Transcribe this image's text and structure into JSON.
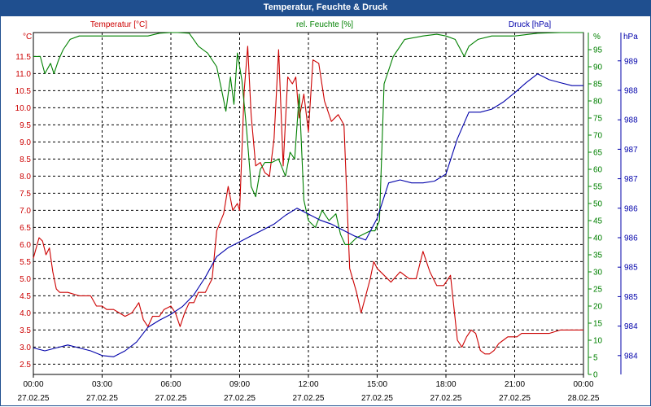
{
  "window": {
    "title": "Temperatur, Feuchte & Druck"
  },
  "chart_data": {
    "type": "line",
    "title": "Temperatur, Feuchte & Druck",
    "x_hours": [
      0,
      1.5,
      3,
      4.5,
      6,
      7.5,
      9,
      10.5,
      12,
      13.5,
      15,
      16.5,
      18,
      19.5,
      21,
      22.5,
      24
    ],
    "x_tick_labels": [
      {
        "time": "00:00",
        "date": "27.02.25"
      },
      {
        "time": "03:00",
        "date": "27.02.25"
      },
      {
        "time": "06:00",
        "date": "27.02.25"
      },
      {
        "time": "09:00",
        "date": "27.02.25"
      },
      {
        "time": "12:00",
        "date": "27.02.25"
      },
      {
        "time": "15:00",
        "date": "27.02.25"
      },
      {
        "time": "18:00",
        "date": "27.02.25"
      },
      {
        "time": "21:00",
        "date": "27.02.25"
      },
      {
        "time": "00:00",
        "date": "28.02.25"
      }
    ],
    "left_axis": {
      "label": "Temperatur [°C]",
      "unit": "°C",
      "color": "#cc0000",
      "ylim": [
        2.2,
        12.2
      ],
      "ticks": [
        "2.5",
        "3.0",
        "3.5",
        "4.0",
        "4.5",
        "5.0",
        "5.5",
        "6.0",
        "6.5",
        "7.0",
        "7.5",
        "8.0",
        "8.5",
        "9.0",
        "9.5",
        "10.0",
        "10.5",
        "11.0",
        "11.5"
      ]
    },
    "right_axis_1": {
      "label": "rel. Feuchte [%]",
      "unit": "%",
      "color": "#008000",
      "ylim": [
        0,
        100
      ],
      "ticks": [
        "0",
        "5",
        "10",
        "15",
        "20",
        "25",
        "30",
        "35",
        "40",
        "45",
        "50",
        "55",
        "60",
        "65",
        "70",
        "75",
        "80",
        "85",
        "90",
        "95"
      ]
    },
    "right_axis_2": {
      "label": "Druck [hPa]",
      "unit": "hPa",
      "color": "#0000aa",
      "ylim": [
        983.6,
        989.4
      ],
      "ticks": [
        "984",
        "984",
        "985",
        "985",
        "986",
        "986",
        "987",
        "987",
        "988",
        "988",
        "989"
      ]
    },
    "series": [
      {
        "name": "Temperatur [°C]",
        "axis": "left",
        "color": "#cc0000",
        "x": [
          0,
          0.25,
          0.4,
          0.55,
          0.7,
          0.85,
          1,
          1.15,
          1.3,
          1.5,
          2,
          2.5,
          2.75,
          3,
          3.2,
          3.5,
          4,
          4.3,
          4.6,
          4.8,
          5,
          5.2,
          5.5,
          5.7,
          6,
          6.2,
          6.4,
          6.6,
          6.8,
          7,
          7.2,
          7.5,
          7.8,
          8,
          8.3,
          8.5,
          8.7,
          8.9,
          9,
          9.2,
          9.35,
          9.5,
          9.7,
          9.9,
          10.1,
          10.3,
          10.5,
          10.7,
          10.9,
          11.1,
          11.3,
          11.45,
          11.6,
          11.8,
          12,
          12.2,
          12.45,
          12.7,
          13,
          13.3,
          13.55,
          13.8,
          14.1,
          14.3,
          14.5,
          14.7,
          14.85,
          15,
          15.3,
          15.6,
          16,
          16.4,
          16.7,
          17,
          17.3,
          17.6,
          17.9,
          18.2,
          18.5,
          18.7,
          18.9,
          19.1,
          19.3,
          19.5,
          19.7,
          19.9,
          20.1,
          20.3,
          20.5,
          20.7,
          20.9,
          21.1,
          21.3,
          21.6,
          22,
          22.5,
          23,
          23.5,
          24
        ],
        "values": [
          5.6,
          6.2,
          6.1,
          5.7,
          5.9,
          5.2,
          4.7,
          4.6,
          4.6,
          4.6,
          4.5,
          4.5,
          4.2,
          4.2,
          4.1,
          4.1,
          3.9,
          4.0,
          4.3,
          3.8,
          3.6,
          3.9,
          3.9,
          4.1,
          4.2,
          4.0,
          3.6,
          4.0,
          4.3,
          4.3,
          4.6,
          4.6,
          5.0,
          6.4,
          6.9,
          7.7,
          7.0,
          7.2,
          7.0,
          10.5,
          11.8,
          9.8,
          8.3,
          8.4,
          8.1,
          8.0,
          9.1,
          11.7,
          8.3,
          10.9,
          10.7,
          10.9,
          9.7,
          10.4,
          9.3,
          11.4,
          11.3,
          10.2,
          9.6,
          9.8,
          9.5,
          5.3,
          4.6,
          4.0,
          4.5,
          5.0,
          5.5,
          5.3,
          5.1,
          4.9,
          5.2,
          5.0,
          5.0,
          5.8,
          5.2,
          4.8,
          4.8,
          5.1,
          3.2,
          3.0,
          3.3,
          3.5,
          3.4,
          2.9,
          2.8,
          2.8,
          2.9,
          3.1,
          3.2,
          3.3,
          3.3,
          3.3,
          3.4,
          3.4,
          3.4,
          3.4,
          3.5,
          3.5,
          3.5
        ]
      },
      {
        "name": "rel. Feuchte [%]",
        "axis": "right_1",
        "color": "#008000",
        "x": [
          0,
          0.3,
          0.5,
          0.75,
          0.9,
          1.1,
          1.3,
          1.6,
          2,
          3,
          4,
          5,
          5.5,
          6,
          6.3,
          6.8,
          7.2,
          7.6,
          8,
          8.25,
          8.4,
          8.6,
          8.75,
          8.9,
          9.1,
          9.3,
          9.5,
          9.7,
          9.9,
          10.1,
          10.4,
          10.7,
          11,
          11.2,
          11.4,
          11.6,
          11.8,
          12,
          12.3,
          12.6,
          12.9,
          13.2,
          13.4,
          13.6,
          13.8,
          14.1,
          14.4,
          14.7,
          14.9,
          15.1,
          15.3,
          15.7,
          16.2,
          17,
          17.6,
          18,
          18.4,
          18.8,
          19,
          19.4,
          20,
          21,
          22,
          23,
          24
        ],
        "values": [
          93,
          93,
          88,
          91,
          88,
          92,
          95,
          98,
          99,
          99,
          99,
          99,
          99.8,
          100,
          100,
          99.8,
          96,
          94,
          90,
          82,
          77,
          87,
          79,
          94,
          86,
          72,
          55,
          52,
          60,
          62,
          62,
          63,
          58,
          65,
          63,
          82,
          51,
          45,
          43,
          48,
          45,
          47,
          41,
          38,
          38,
          40,
          41,
          42,
          42,
          45,
          85,
          93,
          98,
          99,
          99.5,
          99,
          98,
          93,
          96,
          98,
          99,
          99,
          99.8,
          100,
          100
        ]
      },
      {
        "name": "Druck [hPa]",
        "axis": "right_2",
        "color": "#0000aa",
        "x": [
          0,
          0.5,
          1,
          1.5,
          2,
          2.5,
          3,
          3.5,
          4,
          4.5,
          5,
          5.5,
          6,
          6.5,
          7,
          7.5,
          8,
          8.5,
          9,
          9.5,
          10,
          10.5,
          11,
          11.5,
          12,
          12.5,
          13,
          13.5,
          14,
          14.5,
          15,
          15.5,
          16,
          16.5,
          17,
          17.5,
          18,
          18.5,
          19,
          19.5,
          20,
          20.5,
          21,
          21.5,
          22,
          22.5,
          23,
          23.5,
          24
        ],
        "values": [
          984.05,
          984.0,
          984.05,
          984.1,
          984.05,
          984.0,
          983.92,
          983.9,
          984.0,
          984.15,
          984.4,
          984.52,
          984.62,
          984.75,
          984.95,
          985.25,
          985.6,
          985.75,
          985.85,
          985.95,
          986.05,
          986.15,
          986.3,
          986.42,
          986.32,
          986.22,
          986.15,
          986.05,
          985.95,
          985.88,
          986.25,
          986.85,
          986.9,
          986.85,
          986.85,
          986.88,
          987.0,
          987.6,
          988.05,
          988.05,
          988.1,
          988.22,
          988.38,
          988.55,
          988.7,
          988.6,
          988.55,
          988.5,
          988.5
        ]
      }
    ]
  }
}
